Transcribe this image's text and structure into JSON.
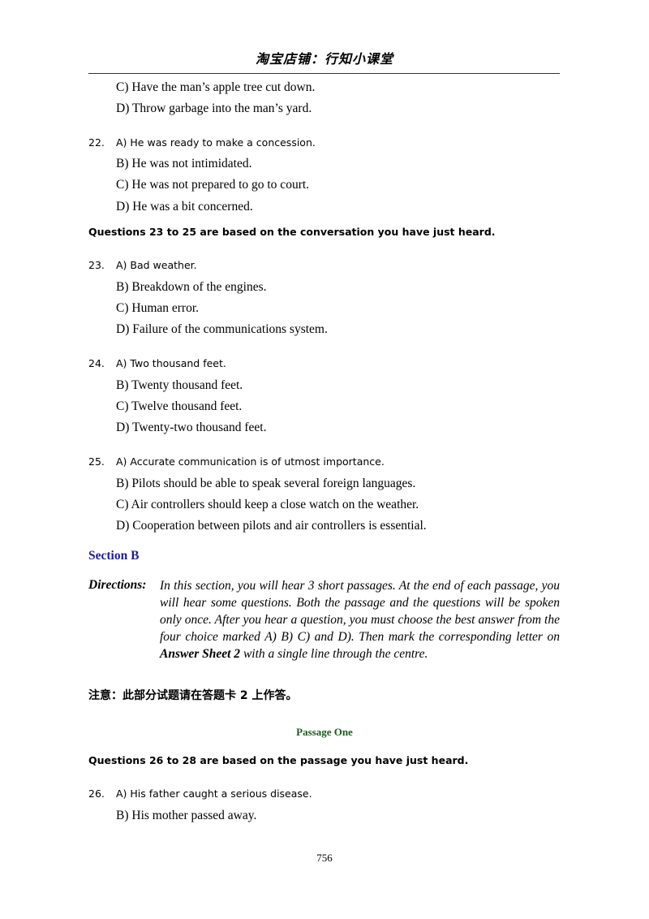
{
  "header": {
    "title": "淘宝店铺：行知小课堂"
  },
  "q21": {
    "c": "C) Have the man’s apple tree cut down.",
    "d": "D) Throw garbage into the man’s yard."
  },
  "q22": {
    "num": "22.",
    "a": "A) He was ready to make a concession.",
    "b": "B) He was not intimidated.",
    "c": "C) He was not prepared to go to court.",
    "d": "D) He was a bit concerned."
  },
  "heading_23_25": "Questions 23 to 25 are based on the conversation you have just heard.",
  "q23": {
    "num": "23.",
    "a": "A) Bad weather.",
    "b": "B) Breakdown of the engines.",
    "c": "C) Human error.",
    "d": "D) Failure of the communications system."
  },
  "q24": {
    "num": "24.",
    "a": "A) Two thousand feet.",
    "b": "B) Twenty thousand feet.",
    "c": "C) Twelve thousand feet.",
    "d": "D) Twenty-two thousand feet."
  },
  "q25": {
    "num": "25.",
    "a": "A) Accurate communication is of utmost importance.",
    "b": "B) Pilots should be able to speak several foreign languages.",
    "c": "C) Air controllers should keep a close watch on the weather.",
    "d": "D) Cooperation between pilots and air controllers is essential."
  },
  "section_b": {
    "title": "Section B",
    "directions_label": "Directions:",
    "directions_before": "In this section, you will hear 3 short passages. At the end of each passage, you will hear some questions. Both the passage and the questions will be spoken only once. After you hear a question, you must choose the best answer from the four choice marked A) B) C) and D). Then mark the corresponding letter on ",
    "directions_bold": "Answer Sheet 2",
    "directions_after": " with a single line through the centre.",
    "note": "注意：此部分试题请在答题卡 2 上作答。",
    "passage_title": "Passage One",
    "heading_26_28": "Questions 26 to 28 are based on the passage you have just heard."
  },
  "q26": {
    "num": "26.",
    "a": "A) His father caught a serious disease.",
    "b": "B) His mother passed away."
  },
  "page_number": "756",
  "colors": {
    "section_title": "#1f1f9a",
    "passage_title": "#1d5a1d"
  }
}
